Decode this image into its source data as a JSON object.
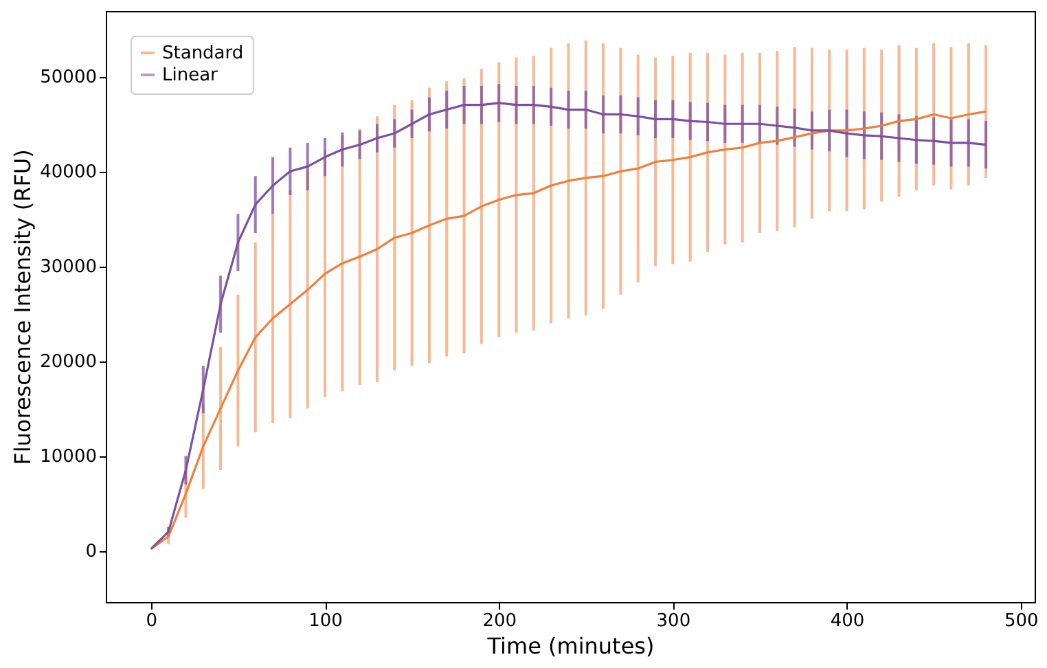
{
  "chart_data": {
    "type": "line",
    "xlabel": "Time (minutes)",
    "ylabel": "Fluorescence Intensity (RFU)",
    "xlim": [
      -26,
      508
    ],
    "ylim": [
      -5400,
      56900
    ],
    "xticks": [
      0,
      100,
      200,
      300,
      400,
      500
    ],
    "yticks": [
      0,
      10000,
      20000,
      30000,
      40000,
      50000
    ],
    "grid": false,
    "legend": "top left",
    "marker": "none",
    "line_style": "solid",
    "x": [
      0,
      10,
      20,
      30,
      40,
      50,
      60,
      70,
      80,
      90,
      100,
      110,
      120,
      130,
      140,
      150,
      160,
      170,
      180,
      190,
      200,
      210,
      220,
      230,
      240,
      250,
      260,
      270,
      280,
      290,
      300,
      310,
      320,
      330,
      340,
      350,
      360,
      370,
      380,
      390,
      400,
      410,
      420,
      430,
      440,
      450,
      460,
      470,
      480
    ],
    "series": [
      {
        "name": "Standard",
        "color": "#ef7f3a",
        "values": [
          200,
          1500,
          6000,
          11000,
          15000,
          19000,
          22500,
          24500,
          26000,
          27500,
          29200,
          30300,
          31000,
          31800,
          33000,
          33500,
          34300,
          35000,
          35300,
          36300,
          37000,
          37500,
          37700,
          38500,
          39000,
          39300,
          39500,
          40000,
          40300,
          41000,
          41200,
          41500,
          42000,
          42300,
          42500,
          43000,
          43200,
          43600,
          44000,
          44300,
          44300,
          44500,
          44800,
          45300,
          45500,
          46000,
          45600,
          46000,
          46300
        ],
        "errors": [
          0,
          800,
          2500,
          4500,
          6500,
          8000,
          10000,
          11000,
          12000,
          12500,
          13000,
          13500,
          13500,
          14000,
          14000,
          14000,
          14500,
          14500,
          14500,
          14500,
          14500,
          14500,
          14500,
          14500,
          14500,
          14500,
          14000,
          13000,
          12000,
          11000,
          11000,
          11000,
          10500,
          10000,
          10000,
          9500,
          9500,
          9500,
          9000,
          8500,
          8500,
          8500,
          8000,
          8000,
          7500,
          7500,
          7500,
          7500,
          7000
        ]
      },
      {
        "name": "Linear",
        "color": "#7d4f9e",
        "values": [
          200,
          2000,
          8500,
          17000,
          26000,
          32500,
          36500,
          38500,
          40000,
          40500,
          41500,
          42300,
          42800,
          43500,
          44000,
          45000,
          46000,
          46500,
          47000,
          47000,
          47200,
          47000,
          47000,
          46800,
          46500,
          46500,
          46000,
          46000,
          45800,
          45500,
          45500,
          45300,
          45200,
          45000,
          45000,
          45000,
          44800,
          44600,
          44300,
          44300,
          44000,
          43800,
          43700,
          43500,
          43300,
          43200,
          43000,
          43000,
          42800
        ],
        "errors": [
          0,
          500,
          1500,
          2500,
          3000,
          3000,
          3000,
          3000,
          2500,
          2500,
          2000,
          1800,
          1500,
          1500,
          1500,
          1500,
          1800,
          2000,
          2000,
          2000,
          2000,
          2000,
          2000,
          2000,
          2000,
          2000,
          2000,
          2000,
          2000,
          2000,
          2000,
          2000,
          2000,
          2000,
          2000,
          2000,
          2000,
          2000,
          2000,
          2200,
          2500,
          2500,
          2500,
          2500,
          2500,
          2500,
          2500,
          2500,
          2500
        ]
      }
    ]
  }
}
